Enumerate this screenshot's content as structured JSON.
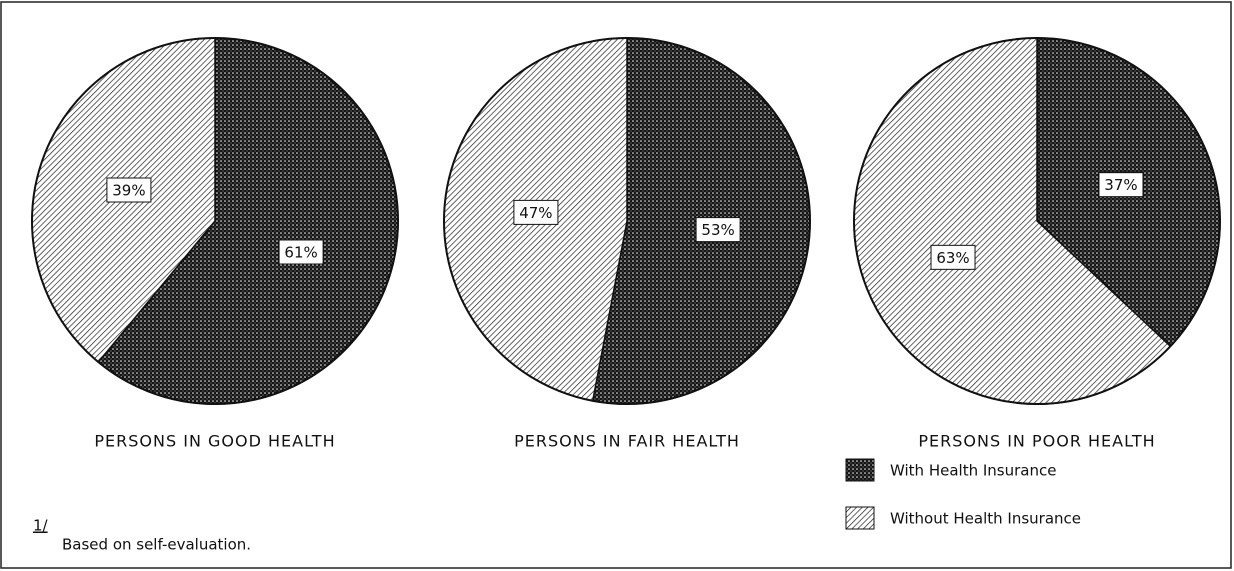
{
  "chart_data": [
    {
      "type": "pie",
      "title": "PERSONS IN GOOD HEALTH",
      "values": [
        61,
        39
      ],
      "value_labels": [
        "61%",
        "39%"
      ]
    },
    {
      "type": "pie",
      "title": "PERSONS IN FAIR HEALTH",
      "values": [
        53,
        47
      ],
      "value_labels": [
        "53%",
        "47%"
      ]
    },
    {
      "type": "pie",
      "title": "PERSONS IN POOR HEALTH",
      "values": [
        37,
        63
      ],
      "value_labels": [
        "37%",
        "63%"
      ]
    }
  ],
  "legend": [
    {
      "name": "With Health Insurance",
      "pattern": "dots"
    },
    {
      "name": "Without Health Insurance",
      "pattern": "hatch"
    }
  ],
  "footnote": {
    "mark": "1/",
    "text": "Based on self-evaluation."
  }
}
